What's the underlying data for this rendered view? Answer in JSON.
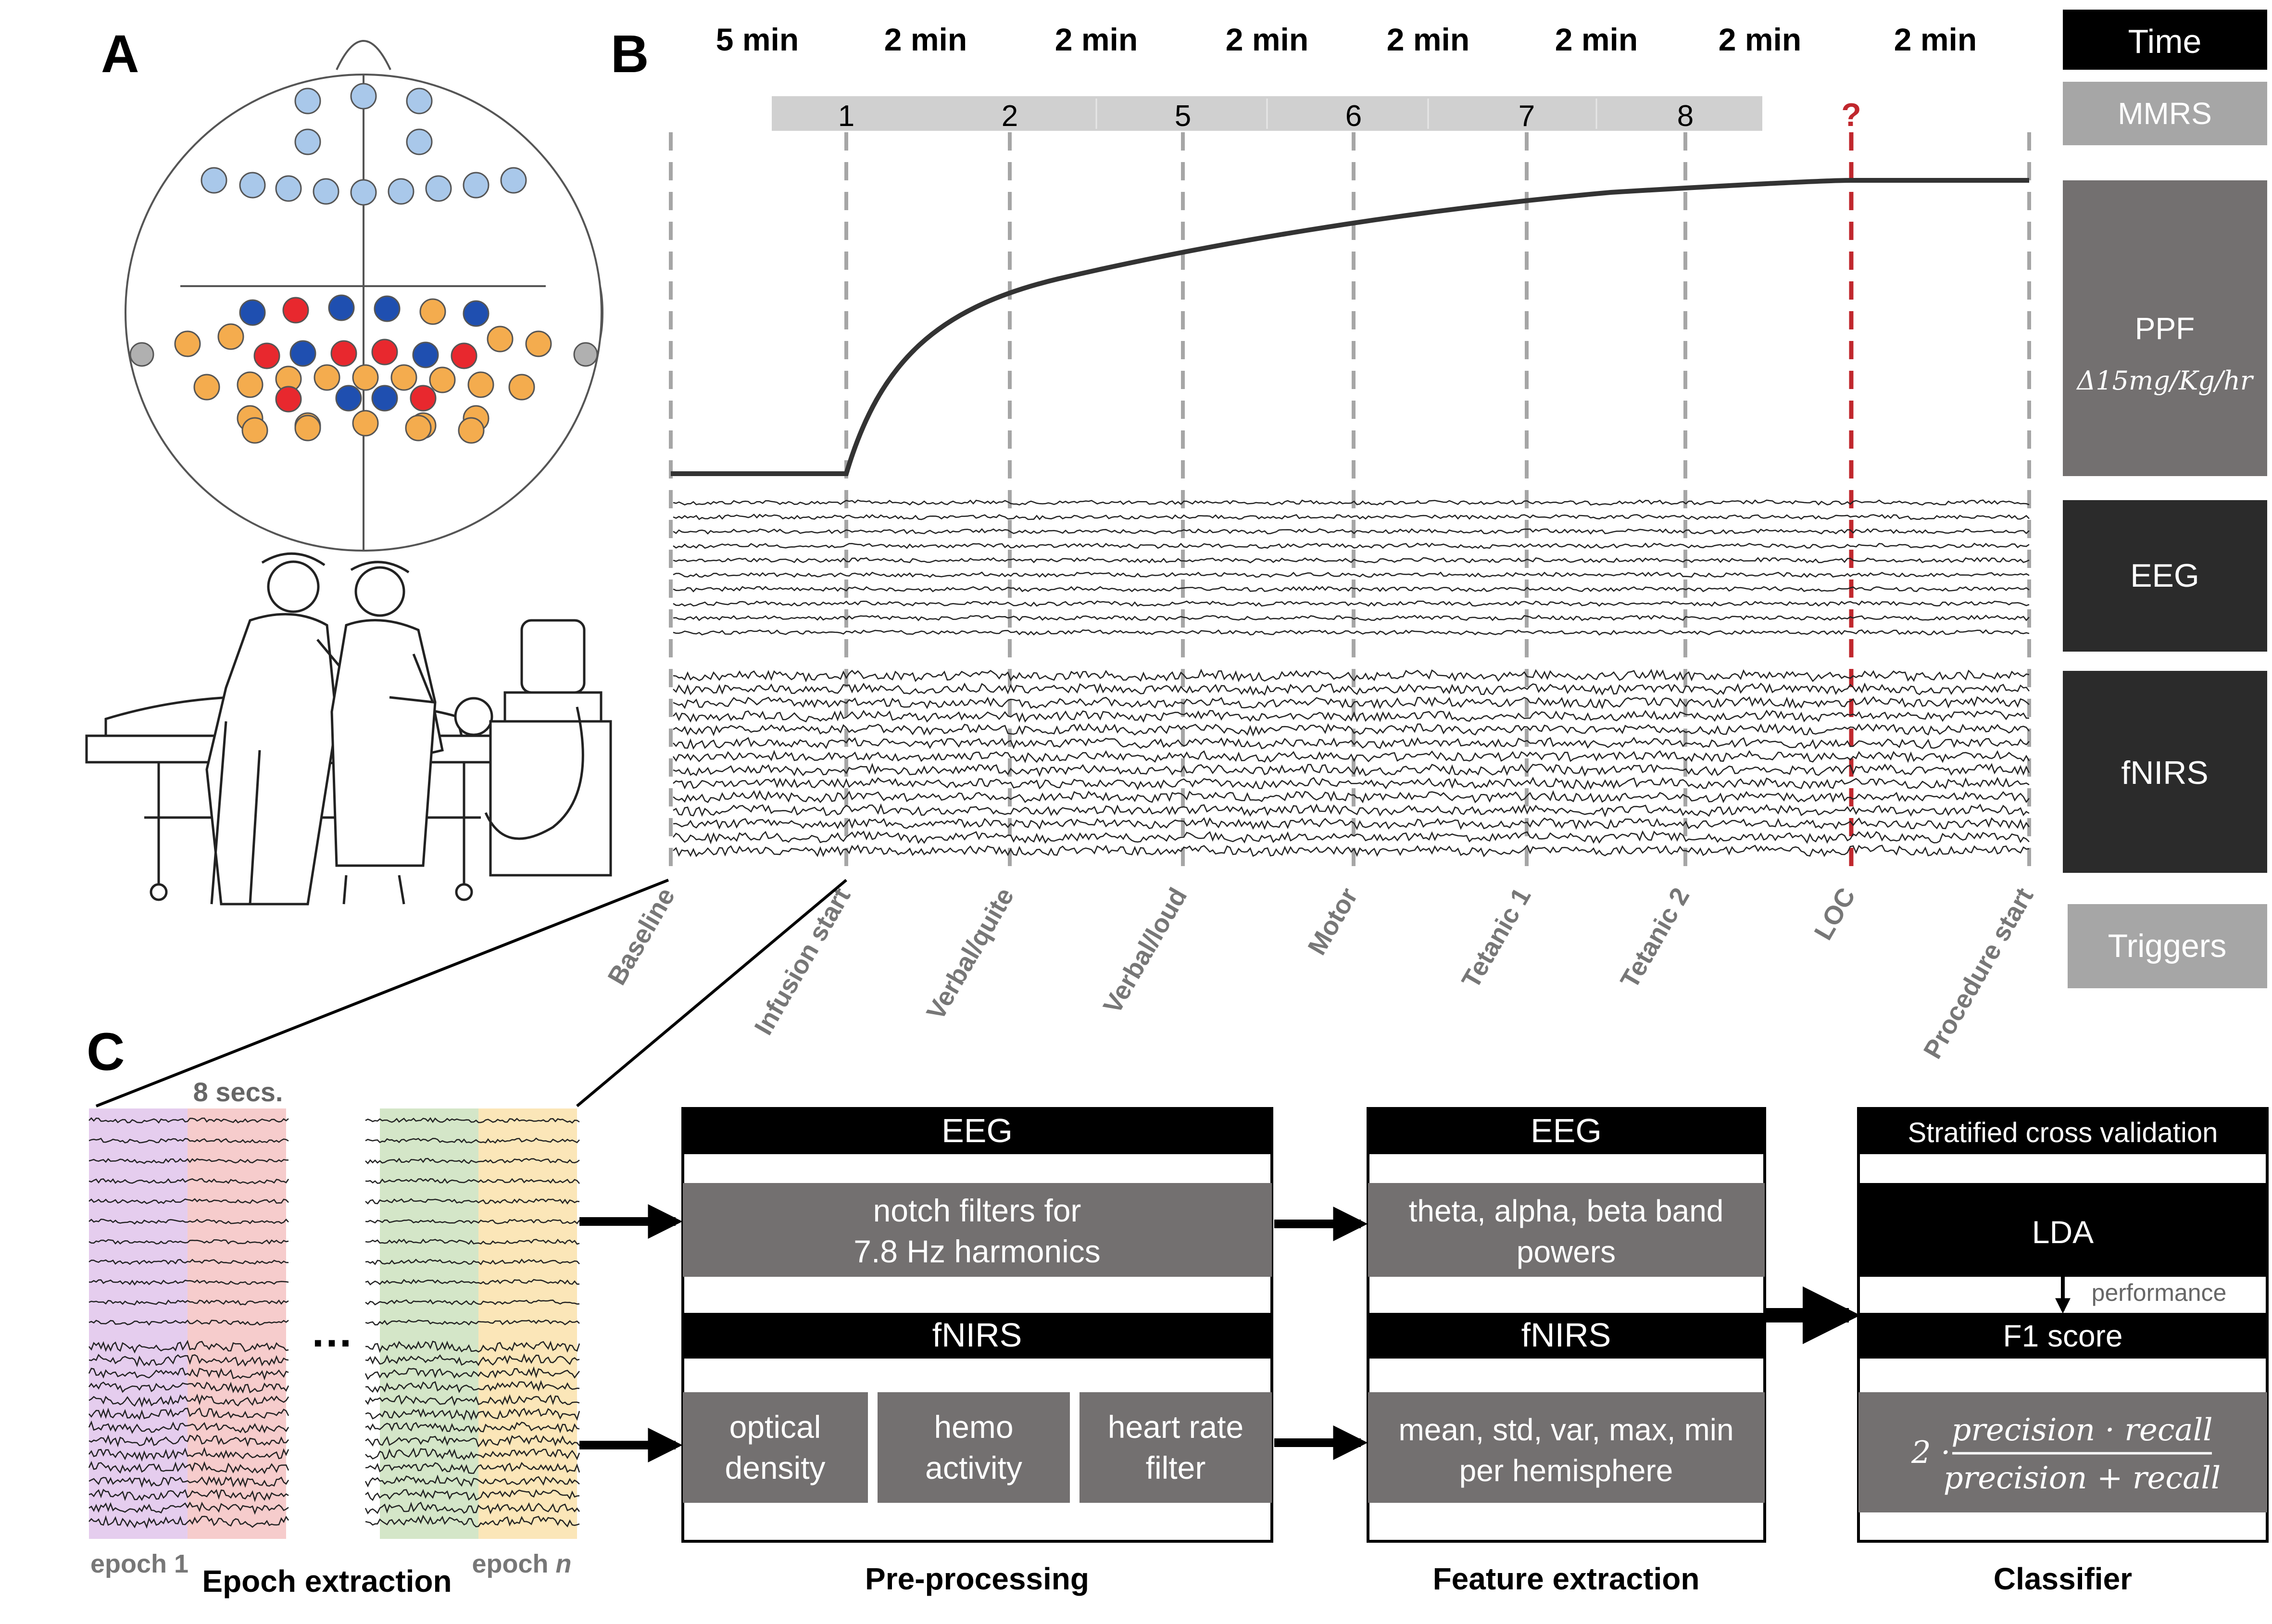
{
  "panel_labels": {
    "a": "A",
    "b": "B",
    "c": "C"
  },
  "timeline": {
    "durations": [
      "5 min",
      "2 min",
      "2 min",
      "2 min",
      "2 min",
      "2 min",
      "2 min",
      "2 min"
    ],
    "mmrs_scores": [
      "1",
      "2",
      "5",
      "6",
      "7",
      "8"
    ],
    "unknown_mark": "?",
    "triggers": [
      "Baseline",
      "Infusion start",
      "Verbal/quite",
      "Verbal/loud",
      "Motor",
      "Tetanic 1",
      "Tetanic 2",
      "LOC",
      "Procedure start"
    ]
  },
  "legend": {
    "time": "Time",
    "mmrs": "MMRS",
    "ppf": "PPF",
    "ppf_rate": "Δ15mg/Kg/hr",
    "eeg": "EEG",
    "fnirs": "fNIRS",
    "triggers": "Triggers"
  },
  "epochs": {
    "window": "8 secs.",
    "ellipsis": "…",
    "first": "epoch 1",
    "last_prefix": "epoch ",
    "last_n": "n",
    "caption": "Epoch extraction"
  },
  "preprocessing": {
    "eeg_header": "EEG",
    "eeg_step_line1": "notch filters for",
    "eeg_step_line2": "7.8 Hz harmonics",
    "fnirs_header": "fNIRS",
    "fnirs_steps": [
      {
        "line1": "optical",
        "line2": "density"
      },
      {
        "line1": "hemo",
        "line2": "activity"
      },
      {
        "line1": "heart rate",
        "line2": "filter"
      }
    ],
    "caption": "Pre-processing"
  },
  "features": {
    "eeg_header": "EEG",
    "eeg_line1": "theta, alpha, beta band",
    "eeg_line2": "powers",
    "fnirs_header": "fNIRS",
    "fnirs_line1": "mean, std, var, max, min",
    "fnirs_line2": "per hemisphere",
    "caption": "Feature extraction"
  },
  "classifier": {
    "header": "Stratified cross validation",
    "model": "LDA",
    "arrow_label": "performance",
    "metric": "F1 score",
    "formula_coef": "2 ·",
    "formula_num": "precision · recall",
    "formula_den": "precision + recall",
    "caption": "Classifier"
  },
  "colors": {
    "black": "#000000",
    "dark_box": "#2b2b2b",
    "mid_box": "#737070",
    "light_box": "#a6a6a6",
    "light_bar": "#d0d0d0",
    "red": "#c0272d",
    "blue_light": "#a9c8ea",
    "blue_dark": "#1f4fb0",
    "orange": "#f4ac4e",
    "red_dot": "#e8282e",
    "epoch_purple": "#e5cdee",
    "epoch_red": "#f6cccc",
    "epoch_green": "#d4e6c8",
    "epoch_yellow": "#fbe6b8"
  }
}
